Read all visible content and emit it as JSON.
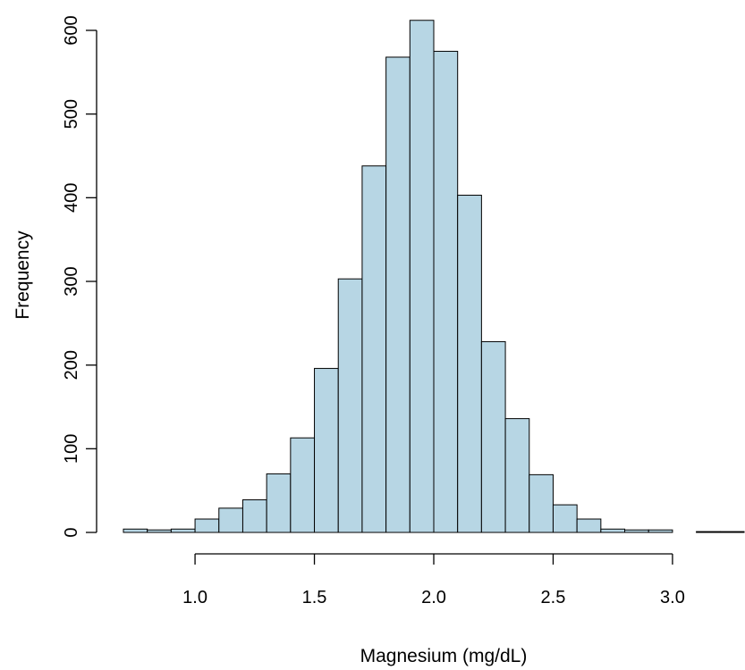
{
  "chart_data": {
    "type": "bar",
    "xlabel": "Magnesium (mg/dL)",
    "ylabel": "Frequency",
    "x_ticks": [
      "1.0",
      "1.5",
      "2.0",
      "2.5",
      "3.0"
    ],
    "x_tick_values": [
      1.0,
      1.5,
      2.0,
      2.5,
      3.0
    ],
    "y_ticks": [
      "0",
      "100",
      "200",
      "300",
      "400",
      "500",
      "600"
    ],
    "y_tick_values": [
      0,
      100,
      200,
      300,
      400,
      500,
      600
    ],
    "xlim": [
      0.7,
      3.3
    ],
    "ylim": [
      0,
      600
    ],
    "bin_width": 0.1,
    "bins": [
      {
        "start": 0.7,
        "end": 0.8,
        "count": 4
      },
      {
        "start": 0.8,
        "end": 0.9,
        "count": 3
      },
      {
        "start": 0.9,
        "end": 1.0,
        "count": 4
      },
      {
        "start": 1.0,
        "end": 1.1,
        "count": 16
      },
      {
        "start": 1.1,
        "end": 1.2,
        "count": 29
      },
      {
        "start": 1.2,
        "end": 1.3,
        "count": 39
      },
      {
        "start": 1.3,
        "end": 1.4,
        "count": 70
      },
      {
        "start": 1.4,
        "end": 1.5,
        "count": 113
      },
      {
        "start": 1.5,
        "end": 1.6,
        "count": 196
      },
      {
        "start": 1.6,
        "end": 1.7,
        "count": 303
      },
      {
        "start": 1.7,
        "end": 1.8,
        "count": 438
      },
      {
        "start": 1.8,
        "end": 1.9,
        "count": 568
      },
      {
        "start": 1.9,
        "end": 2.0,
        "count": 612
      },
      {
        "start": 2.0,
        "end": 2.1,
        "count": 575
      },
      {
        "start": 2.1,
        "end": 2.2,
        "count": 403
      },
      {
        "start": 2.2,
        "end": 2.3,
        "count": 228
      },
      {
        "start": 2.3,
        "end": 2.4,
        "count": 136
      },
      {
        "start": 2.4,
        "end": 2.5,
        "count": 69
      },
      {
        "start": 2.5,
        "end": 2.6,
        "count": 33
      },
      {
        "start": 2.6,
        "end": 2.7,
        "count": 16
      },
      {
        "start": 2.7,
        "end": 2.8,
        "count": 4
      },
      {
        "start": 2.8,
        "end": 2.9,
        "count": 3
      },
      {
        "start": 2.9,
        "end": 3.0,
        "count": 3
      },
      {
        "start": 3.0,
        "end": 3.1,
        "count": 0
      },
      {
        "start": 3.1,
        "end": 3.2,
        "count": 1
      },
      {
        "start": 3.2,
        "end": 3.3,
        "count": 1
      }
    ],
    "colors": {
      "bar_fill": "#B7D6E4",
      "bar_stroke": "#000000"
    },
    "grid": false,
    "legend": "none"
  }
}
